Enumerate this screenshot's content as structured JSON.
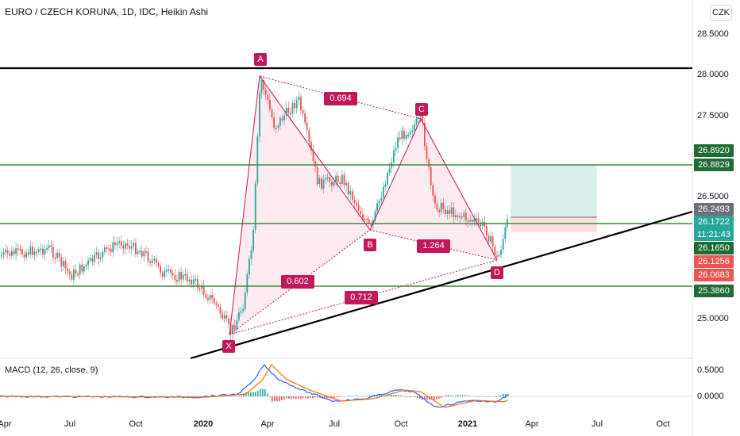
{
  "header": {
    "symbol_title": "EURO / CZECH KORUNA, 1D, IDC, Heikin Ashi",
    "currency_button": "CZK"
  },
  "macd": {
    "title": "MACD (12, 26, close, 9)",
    "y_labels": [
      "0.5000",
      "0.0000"
    ]
  },
  "price_axis": {
    "labels": [
      "28.5000",
      "28.0000",
      "27.5000",
      "26.5000",
      "25.0000"
    ]
  },
  "price_tags": [
    {
      "label": "26.8920",
      "color": "#1e6b35"
    },
    {
      "label": "26.8829",
      "color": "#1e6b35"
    },
    {
      "label": "26.2493",
      "color": "#6b6f7a"
    },
    {
      "label": "26.1722",
      "color": "#26a69a"
    },
    {
      "label": "11:21:43",
      "color": "#26a69a"
    },
    {
      "label": "26.1650",
      "color": "#1e6b35"
    },
    {
      "label": "26.1256",
      "color": "#ef5350"
    },
    {
      "label": "26.0683",
      "color": "#ef5350"
    },
    {
      "label": "25.3860",
      "color": "#1e6b35"
    }
  ],
  "time_axis": [
    {
      "label": "Apr",
      "bold": false
    },
    {
      "label": "Jul",
      "bold": false
    },
    {
      "label": "Oct",
      "bold": false
    },
    {
      "label": "2020",
      "bold": true
    },
    {
      "label": "Apr",
      "bold": false
    },
    {
      "label": "Jul",
      "bold": false
    },
    {
      "label": "Oct",
      "bold": false
    },
    {
      "label": "2021",
      "bold": true
    },
    {
      "label": "Apr",
      "bold": false
    },
    {
      "label": "Jul",
      "bold": false
    },
    {
      "label": "Oct",
      "bold": false
    }
  ],
  "pattern_points": [
    "X",
    "A",
    "B",
    "C",
    "D"
  ],
  "pattern_ratios": [
    "0.694",
    "0.602",
    "1.264",
    "0.712"
  ],
  "colors": {
    "up": "#26a69a",
    "down": "#ef5350",
    "pattern": "#c2185b",
    "level_line": "#3d8b3d",
    "trend_line": "#000000"
  }
}
